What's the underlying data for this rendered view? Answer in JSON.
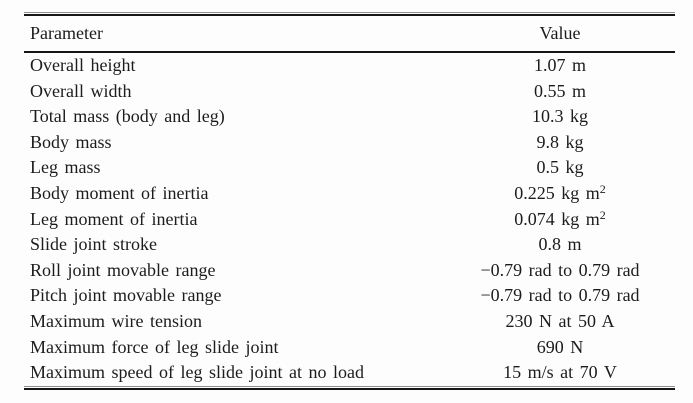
{
  "table": {
    "header": {
      "parameter": "Parameter",
      "value": "Value"
    },
    "rows": [
      {
        "param": "Overall height",
        "value": "1.07 m",
        "sup": ""
      },
      {
        "param": "Overall width",
        "value": "0.55 m",
        "sup": ""
      },
      {
        "param": "Total mass (body and leg)",
        "value": "10.3 kg",
        "sup": ""
      },
      {
        "param": "Body mass",
        "value": "9.8 kg",
        "sup": ""
      },
      {
        "param": "Leg mass",
        "value": "0.5 kg",
        "sup": ""
      },
      {
        "param": "Body moment of inertia",
        "value": "0.225 kg m",
        "sup": "2"
      },
      {
        "param": "Leg moment of inertia",
        "value": "0.074 kg m",
        "sup": "2"
      },
      {
        "param": "Slide joint stroke",
        "value": "0.8 m",
        "sup": ""
      },
      {
        "param": "Roll joint movable range",
        "value": "−0.79 rad to 0.79 rad",
        "sup": ""
      },
      {
        "param": "Pitch joint movable range",
        "value": "−0.79 rad to 0.79 rad",
        "sup": ""
      },
      {
        "param": "Maximum wire tension",
        "value": "230 N at 50 A",
        "sup": ""
      },
      {
        "param": "Maximum force of leg slide joint",
        "value": "690 N",
        "sup": ""
      },
      {
        "param": "Maximum speed of leg slide joint at no load",
        "value": "15 m/s at 70 V",
        "sup": ""
      }
    ],
    "colors": {
      "text": "#1c1c1c",
      "rule": "#161616",
      "background": "#fdfdfd"
    }
  }
}
